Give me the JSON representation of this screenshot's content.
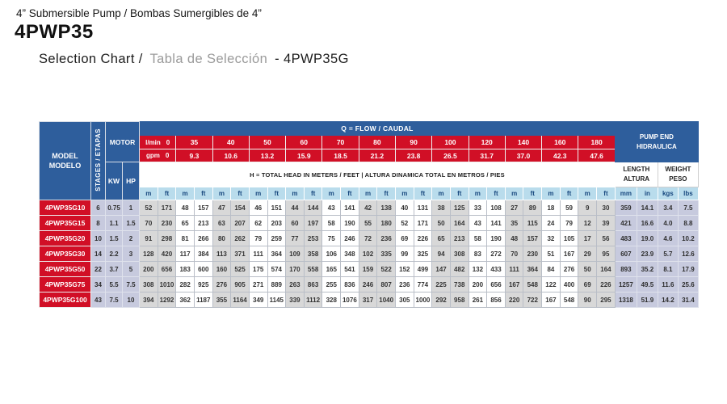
{
  "page": {
    "category": "4” Submersible Pump / Bombas Sumergibles de 4”",
    "model": "4PWP35",
    "heading_en": "Selection Chart /",
    "heading_es": "Tabla de Selección",
    "heading_suffix": "- 4PWP35G"
  },
  "colors": {
    "header_blue": "#2e5e9c",
    "red": "#d10f26",
    "unit_row_bg": "#b9dcec",
    "unit_text_blue": "#17477e",
    "lavender": "#c7cade",
    "stripe_gray": "#d8d8d8",
    "heading_gray": "#9a9a9a"
  },
  "table": {
    "model_header": [
      "MODEL",
      "MODELO"
    ],
    "stages_header": "STAGES / ETAPAS",
    "motor_header": "MOTOR",
    "kw_header": "KW",
    "hp_header": "HP",
    "flow_header": "Q = FLOW / CAUDAL",
    "lmin_label": "l/min",
    "gpm_label": "gpm",
    "flows_lmin": [
      "0",
      "35",
      "40",
      "50",
      "60",
      "70",
      "80",
      "90",
      "100",
      "120",
      "140",
      "160",
      "180"
    ],
    "flows_gpm": [
      "0",
      "9.3",
      "10.6",
      "13.2",
      "15.9",
      "18.5",
      "21.2",
      "23.8",
      "26.5",
      "31.7",
      "37.0",
      "42.3",
      "47.6"
    ],
    "head_note": "H = TOTAL HEAD IN METERS / FEET | ALTURA DINAMICA TOTAL EN METROS / PIES",
    "pump_end_header": [
      "PUMP END",
      "HIDRAULICA"
    ],
    "length_header": [
      "LENGTH",
      "ALTURA"
    ],
    "weight_header": [
      "WEIGHT",
      "PESO"
    ],
    "unit_m": "m",
    "unit_ft": "ft",
    "unit_mm": "mm",
    "unit_in": "in",
    "unit_kgs": "kgs",
    "unit_lbs": "lbs",
    "rows": [
      {
        "model": "4PWP35G10",
        "stages": "6",
        "kw": "0.75",
        "hp": "1",
        "head": [
          [
            "52",
            "171"
          ],
          [
            "48",
            "157"
          ],
          [
            "47",
            "154"
          ],
          [
            "46",
            "151"
          ],
          [
            "44",
            "144"
          ],
          [
            "43",
            "141"
          ],
          [
            "42",
            "138"
          ],
          [
            "40",
            "131"
          ],
          [
            "38",
            "125"
          ],
          [
            "33",
            "108"
          ],
          [
            "27",
            "89"
          ],
          [
            "18",
            "59"
          ],
          [
            "9",
            "30"
          ]
        ],
        "length_mm": "359",
        "length_in": "14.1",
        "weight_kgs": "3.4",
        "weight_lbs": "7.5"
      },
      {
        "model": "4PWP35G15",
        "stages": "8",
        "kw": "1.1",
        "hp": "1.5",
        "head": [
          [
            "70",
            "230"
          ],
          [
            "65",
            "213"
          ],
          [
            "63",
            "207"
          ],
          [
            "62",
            "203"
          ],
          [
            "60",
            "197"
          ],
          [
            "58",
            "190"
          ],
          [
            "55",
            "180"
          ],
          [
            "52",
            "171"
          ],
          [
            "50",
            "164"
          ],
          [
            "43",
            "141"
          ],
          [
            "35",
            "115"
          ],
          [
            "24",
            "79"
          ],
          [
            "12",
            "39"
          ]
        ],
        "length_mm": "421",
        "length_in": "16.6",
        "weight_kgs": "4.0",
        "weight_lbs": "8.8"
      },
      {
        "model": "4PWP35G20",
        "stages": "10",
        "kw": "1.5",
        "hp": "2",
        "head": [
          [
            "91",
            "298"
          ],
          [
            "81",
            "266"
          ],
          [
            "80",
            "262"
          ],
          [
            "79",
            "259"
          ],
          [
            "77",
            "253"
          ],
          [
            "75",
            "246"
          ],
          [
            "72",
            "236"
          ],
          [
            "69",
            "226"
          ],
          [
            "65",
            "213"
          ],
          [
            "58",
            "190"
          ],
          [
            "48",
            "157"
          ],
          [
            "32",
            "105"
          ],
          [
            "17",
            "56"
          ]
        ],
        "length_mm": "483",
        "length_in": "19.0",
        "weight_kgs": "4.6",
        "weight_lbs": "10.2"
      },
      {
        "model": "4PWP35G30",
        "stages": "14",
        "kw": "2.2",
        "hp": "3",
        "head": [
          [
            "128",
            "420"
          ],
          [
            "117",
            "384"
          ],
          [
            "113",
            "371"
          ],
          [
            "111",
            "364"
          ],
          [
            "109",
            "358"
          ],
          [
            "106",
            "348"
          ],
          [
            "102",
            "335"
          ],
          [
            "99",
            "325"
          ],
          [
            "94",
            "308"
          ],
          [
            "83",
            "272"
          ],
          [
            "70",
            "230"
          ],
          [
            "51",
            "167"
          ],
          [
            "29",
            "95"
          ]
        ],
        "length_mm": "607",
        "length_in": "23.9",
        "weight_kgs": "5.7",
        "weight_lbs": "12.6"
      },
      {
        "model": "4PWP35G50",
        "stages": "22",
        "kw": "3.7",
        "hp": "5",
        "head": [
          [
            "200",
            "656"
          ],
          [
            "183",
            "600"
          ],
          [
            "160",
            "525"
          ],
          [
            "175",
            "574"
          ],
          [
            "170",
            "558"
          ],
          [
            "165",
            "541"
          ],
          [
            "159",
            "522"
          ],
          [
            "152",
            "499"
          ],
          [
            "147",
            "482"
          ],
          [
            "132",
            "433"
          ],
          [
            "111",
            "364"
          ],
          [
            "84",
            "276"
          ],
          [
            "50",
            "164"
          ]
        ],
        "length_mm": "893",
        "length_in": "35.2",
        "weight_kgs": "8.1",
        "weight_lbs": "17.9"
      },
      {
        "model": "4PWP35G75",
        "stages": "34",
        "kw": "5.5",
        "hp": "7.5",
        "head": [
          [
            "308",
            "1010"
          ],
          [
            "282",
            "925"
          ],
          [
            "276",
            "905"
          ],
          [
            "271",
            "889"
          ],
          [
            "263",
            "863"
          ],
          [
            "255",
            "836"
          ],
          [
            "246",
            "807"
          ],
          [
            "236",
            "774"
          ],
          [
            "225",
            "738"
          ],
          [
            "200",
            "656"
          ],
          [
            "167",
            "548"
          ],
          [
            "122",
            "400"
          ],
          [
            "69",
            "226"
          ]
        ],
        "length_mm": "1257",
        "length_in": "49.5",
        "weight_kgs": "11.6",
        "weight_lbs": "25.6"
      },
      {
        "model": "4PWP35G100",
        "stages": "43",
        "kw": "7.5",
        "hp": "10",
        "head": [
          [
            "394",
            "1292"
          ],
          [
            "362",
            "1187"
          ],
          [
            "355",
            "1164"
          ],
          [
            "349",
            "1145"
          ],
          [
            "339",
            "1112"
          ],
          [
            "328",
            "1076"
          ],
          [
            "317",
            "1040"
          ],
          [
            "305",
            "1000"
          ],
          [
            "292",
            "958"
          ],
          [
            "261",
            "856"
          ],
          [
            "220",
            "722"
          ],
          [
            "167",
            "548"
          ],
          [
            "90",
            "295"
          ]
        ],
        "length_mm": "1318",
        "length_in": "51.9",
        "weight_kgs": "14.2",
        "weight_lbs": "31.4"
      }
    ]
  }
}
